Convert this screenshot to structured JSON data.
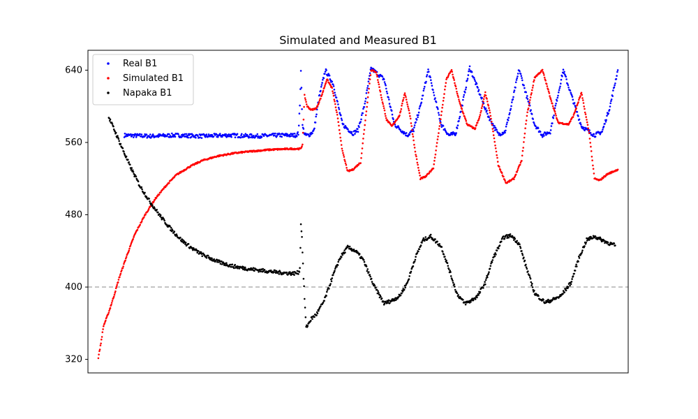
{
  "chart_data": {
    "type": "scatter",
    "title": "Simulated and Measured B1",
    "xlabel": "",
    "ylabel": "",
    "xlim": [
      -20,
      1020
    ],
    "ylim": [
      305,
      662
    ],
    "yticks": [
      320,
      400,
      480,
      560,
      640
    ],
    "xticks_visible": false,
    "grid": false,
    "legend_position": "top-left",
    "reference_line": {
      "y": 400,
      "style": "dashed",
      "color": "#b0b0b0"
    },
    "series": [
      {
        "name": "Real B1",
        "color": "#0000ff",
        "x": [
          50,
          100,
          150,
          200,
          250,
          300,
          350,
          380,
          385,
          388,
          390,
          393,
          398,
          405,
          415,
          425,
          437,
          452,
          470,
          490,
          500,
          512,
          525,
          550,
          570,
          595,
          607,
          620,
          635,
          660,
          675,
          688,
          700,
          715,
          750,
          770,
          783,
          795,
          810,
          840,
          855,
          870,
          880,
          895,
          930,
          955,
          970,
          985,
          1000
        ],
        "y": [
          568,
          567,
          568,
          567,
          568,
          567,
          568,
          568,
          570,
          600,
          641,
          578,
          568,
          568,
          573,
          610,
          640,
          625,
          580,
          570,
          574,
          600,
          642,
          630,
          580,
          568,
          574,
          600,
          640,
          580,
          568,
          570,
          600,
          643,
          590,
          569,
          572,
          600,
          641,
          580,
          568,
          572,
          600,
          640,
          578,
          568,
          572,
          600,
          640
        ]
      },
      {
        "name": "Simulated B1",
        "color": "#ff0000",
        "x": [
          0,
          5,
          10,
          20,
          30,
          40,
          55,
          70,
          90,
          110,
          130,
          150,
          175,
          200,
          230,
          260,
          290,
          330,
          370,
          390,
          393,
          397,
          402,
          410,
          420,
          430,
          440,
          450,
          460,
          470,
          480,
          490,
          505,
          515,
          525,
          535,
          545,
          555,
          565,
          580,
          590,
          600,
          610,
          620,
          630,
          645,
          660,
          670,
          680,
          695,
          710,
          725,
          735,
          745,
          755,
          770,
          785,
          800,
          815,
          825,
          840,
          855,
          870,
          885,
          905,
          915,
          930,
          945,
          955,
          965,
          980,
          1000
        ],
        "y": [
          322,
          338,
          357,
          372,
          390,
          410,
          435,
          458,
          480,
          498,
          512,
          524,
          533,
          540,
          545,
          548,
          550,
          552,
          553,
          553,
          558,
          612,
          600,
          596,
          598,
          612,
          630,
          620,
          590,
          550,
          528,
          530,
          538,
          590,
          640,
          638,
          610,
          585,
          578,
          590,
          615,
          590,
          550,
          520,
          522,
          532,
          590,
          630,
          640,
          605,
          580,
          575,
          590,
          615,
          590,
          535,
          515,
          520,
          540,
          590,
          632,
          640,
          610,
          582,
          580,
          590,
          615,
          570,
          520,
          518,
          525,
          530
        ]
      },
      {
        "name": "Napaka B1",
        "color": "#000000",
        "x": [
          20,
          30,
          45,
          60,
          80,
          100,
          120,
          140,
          160,
          180,
          200,
          230,
          260,
          290,
          320,
          350,
          375,
          385,
          388,
          390,
          392,
          395,
          400,
          410,
          420,
          435,
          450,
          465,
          480,
          495,
          510,
          530,
          550,
          565,
          580,
          595,
          610,
          625,
          640,
          660,
          675,
          690,
          705,
          715,
          730,
          745,
          760,
          780,
          795,
          810,
          825,
          840,
          860,
          875,
          890,
          910,
          925,
          940,
          955,
          970,
          985,
          995
        ],
        "y": [
          588,
          575,
          555,
          535,
          512,
          494,
          478,
          464,
          452,
          443,
          436,
          428,
          423,
          420,
          418,
          416,
          415,
          416,
          420,
          470,
          455,
          410,
          355,
          365,
          370,
          385,
          410,
          432,
          444,
          440,
          430,
          402,
          382,
          385,
          390,
          405,
          432,
          452,
          456,
          445,
          420,
          393,
          382,
          384,
          390,
          405,
          432,
          455,
          457,
          448,
          420,
          393,
          383,
          386,
          390,
          405,
          432,
          452,
          456,
          452,
          448,
          446
        ]
      }
    ]
  }
}
